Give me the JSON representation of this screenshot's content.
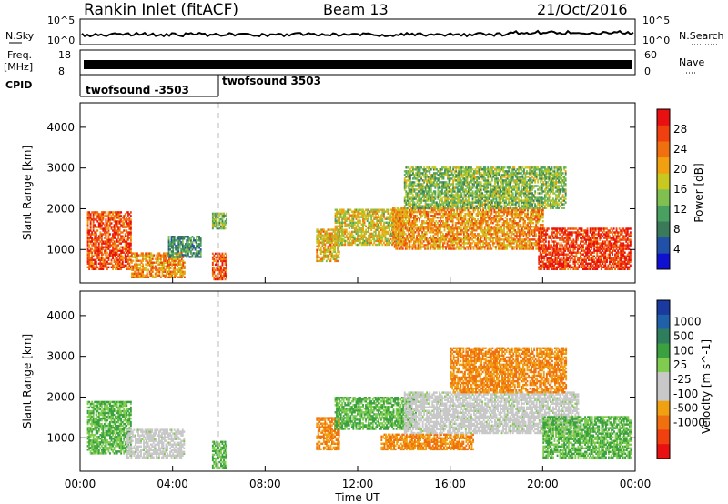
{
  "header": {
    "title": "Rankin Inlet (fitACF)",
    "beam": "Beam 13",
    "date": "21/Oct/2016"
  },
  "top_panels": {
    "nsky_label": "N.Sky",
    "nsearch_label": "N.Search",
    "noise_ticks": [
      "10^5",
      "10^0"
    ],
    "freq_label": "Freq.",
    "freq_unit": "[MHz]",
    "freq_ticks": [
      "18",
      "8"
    ],
    "nave_label": "Nave",
    "nave_ticks": [
      "60",
      "0"
    ],
    "cpid_label": "CPID",
    "cpid_segments": [
      {
        "label": "twofsound -3503",
        "start_hour": 0,
        "end_hour": 6
      },
      {
        "label": "twofsound 3503",
        "start_hour": 6,
        "end_hour": 24
      }
    ]
  },
  "colors": {
    "power_scale": [
      "#1010d0",
      "#2050a8",
      "#3a7a5a",
      "#4aa060",
      "#7fc050",
      "#c8c820",
      "#f0a010",
      "#f07010",
      "#f04010",
      "#e81010"
    ],
    "velocity_scale": [
      "#1a3aa0",
      "#2060a8",
      "#2e7e5e",
      "#3aa040",
      "#80cc50",
      "#c8c8c8",
      "#c8c8c8",
      "#f0a010",
      "#f07010",
      "#f04010",
      "#e81010"
    ]
  },
  "chart_data": [
    {
      "type": "heatmap",
      "title": "",
      "xlabel": "Time UT",
      "ylabel": "Slant Range [km]",
      "xlim": [
        0,
        24
      ],
      "ylim": [
        180,
        4600
      ],
      "x_tick_labels": [
        "00:00",
        "04:00",
        "08:00",
        "12:00",
        "16:00",
        "20:00",
        "00:00"
      ],
      "x_tick_values": [
        0,
        4,
        8,
        12,
        16,
        20,
        24
      ],
      "y_tick_labels": [
        "1000",
        "2000",
        "3000",
        "4000"
      ],
      "y_tick_values": [
        1000,
        2000,
        3000,
        4000
      ],
      "colorbar": {
        "label": "Power [dB]",
        "tick_labels": [
          "4",
          "8",
          "12",
          "16",
          "20",
          "24",
          "28"
        ],
        "tick_values": [
          4,
          8,
          12,
          16,
          20,
          24,
          28
        ],
        "range": [
          0,
          32
        ]
      },
      "regions": [
        {
          "t0": 0.3,
          "t1": 2.2,
          "r0": 500,
          "r1": 1900,
          "value": 26
        },
        {
          "t0": 2.2,
          "t1": 4.5,
          "r0": 300,
          "r1": 900,
          "value": 22
        },
        {
          "t0": 3.8,
          "t1": 5.2,
          "r0": 800,
          "r1": 1300,
          "value": 10
        },
        {
          "t0": 5.7,
          "t1": 6.3,
          "r0": 250,
          "r1": 900,
          "value": 26
        },
        {
          "t0": 5.7,
          "t1": 6.3,
          "r0": 1500,
          "r1": 1900,
          "value": 14
        },
        {
          "t0": 10.2,
          "t1": 11.2,
          "r0": 700,
          "r1": 1500,
          "value": 20
        },
        {
          "t0": 11.0,
          "t1": 14.0,
          "r0": 1100,
          "r1": 2000,
          "value": 18
        },
        {
          "t0": 13.5,
          "t1": 20.0,
          "r0": 1000,
          "r1": 2000,
          "value": 22
        },
        {
          "t0": 19.8,
          "t1": 23.8,
          "r0": 500,
          "r1": 1500,
          "value": 28
        },
        {
          "t0": 14.0,
          "t1": 21.0,
          "r0": 2000,
          "r1": 3000,
          "value": 14
        }
      ]
    },
    {
      "type": "heatmap",
      "title": "",
      "xlabel": "Time UT",
      "ylabel": "Slant Range [km]",
      "xlim": [
        0,
        24
      ],
      "ylim": [
        180,
        4600
      ],
      "x_tick_labels": [
        "00:00",
        "04:00",
        "08:00",
        "12:00",
        "16:00",
        "20:00",
        "00:00"
      ],
      "x_tick_values": [
        0,
        4,
        8,
        12,
        16,
        20,
        24
      ],
      "y_tick_labels": [
        "1000",
        "2000",
        "3000",
        "4000"
      ],
      "y_tick_values": [
        1000,
        2000,
        3000,
        4000
      ],
      "colorbar": {
        "label": "Velocity [m s^-1]",
        "tick_labels": [
          "1000",
          "500",
          "100",
          "25",
          "-25",
          "-100",
          "-500",
          "-1000"
        ],
        "tick_values": [
          1000,
          500,
          100,
          25,
          -25,
          -100,
          -500,
          -1000
        ]
      },
      "regions": [
        {
          "t0": 0.3,
          "t1": 2.2,
          "r0": 600,
          "r1": 1900,
          "value": 100
        },
        {
          "t0": 2.0,
          "t1": 4.5,
          "r0": 500,
          "r1": 1200,
          "value": 0
        },
        {
          "t0": 5.7,
          "t1": 6.3,
          "r0": 250,
          "r1": 900,
          "value": 100
        },
        {
          "t0": 10.2,
          "t1": 11.2,
          "r0": 700,
          "r1": 1500,
          "value": -500
        },
        {
          "t0": 11.0,
          "t1": 14.5,
          "r0": 1200,
          "r1": 2000,
          "value": 100
        },
        {
          "t0": 13.0,
          "t1": 17.0,
          "r0": 700,
          "r1": 1100,
          "value": -500
        },
        {
          "t0": 14.0,
          "t1": 21.5,
          "r0": 1100,
          "r1": 2100,
          "value": 0
        },
        {
          "t0": 16.0,
          "t1": 21.0,
          "r0": 2100,
          "r1": 3200,
          "value": -500
        },
        {
          "t0": 20.0,
          "t1": 23.8,
          "r0": 500,
          "r1": 1500,
          "value": 100
        }
      ]
    }
  ]
}
